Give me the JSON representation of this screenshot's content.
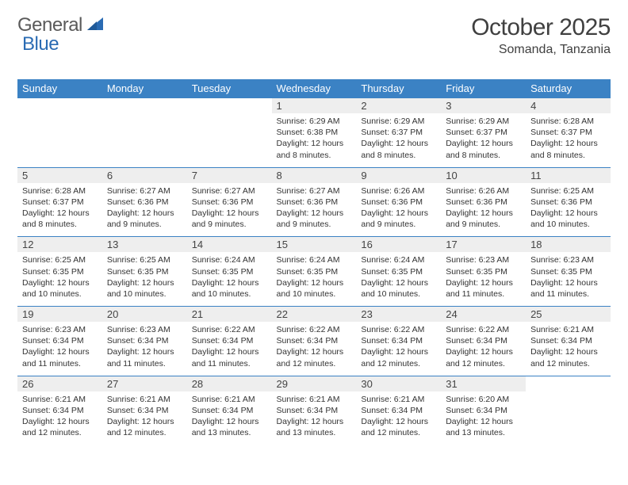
{
  "brand": {
    "word1": "General",
    "word2": "Blue",
    "logo_color": "#2a6bb3",
    "text_color": "#5a5a5a"
  },
  "header": {
    "title": "October 2025",
    "location": "Somanda, Tanzania"
  },
  "dayHeaders": [
    "Sunday",
    "Monday",
    "Tuesday",
    "Wednesday",
    "Thursday",
    "Friday",
    "Saturday"
  ],
  "colors": {
    "header_bg": "#3b82c4",
    "header_fg": "#ffffff",
    "row_divider": "#3b82c4",
    "daynum_bg": "#eeeeee",
    "body_text": "#333333"
  },
  "weeks": [
    [
      {
        "num": "",
        "lines": []
      },
      {
        "num": "",
        "lines": []
      },
      {
        "num": "",
        "lines": []
      },
      {
        "num": "1",
        "lines": [
          "Sunrise: 6:29 AM",
          "Sunset: 6:38 PM",
          "Daylight: 12 hours",
          "and 8 minutes."
        ]
      },
      {
        "num": "2",
        "lines": [
          "Sunrise: 6:29 AM",
          "Sunset: 6:37 PM",
          "Daylight: 12 hours",
          "and 8 minutes."
        ]
      },
      {
        "num": "3",
        "lines": [
          "Sunrise: 6:29 AM",
          "Sunset: 6:37 PM",
          "Daylight: 12 hours",
          "and 8 minutes."
        ]
      },
      {
        "num": "4",
        "lines": [
          "Sunrise: 6:28 AM",
          "Sunset: 6:37 PM",
          "Daylight: 12 hours",
          "and 8 minutes."
        ]
      }
    ],
    [
      {
        "num": "5",
        "lines": [
          "Sunrise: 6:28 AM",
          "Sunset: 6:37 PM",
          "Daylight: 12 hours",
          "and 8 minutes."
        ]
      },
      {
        "num": "6",
        "lines": [
          "Sunrise: 6:27 AM",
          "Sunset: 6:36 PM",
          "Daylight: 12 hours",
          "and 9 minutes."
        ]
      },
      {
        "num": "7",
        "lines": [
          "Sunrise: 6:27 AM",
          "Sunset: 6:36 PM",
          "Daylight: 12 hours",
          "and 9 minutes."
        ]
      },
      {
        "num": "8",
        "lines": [
          "Sunrise: 6:27 AM",
          "Sunset: 6:36 PM",
          "Daylight: 12 hours",
          "and 9 minutes."
        ]
      },
      {
        "num": "9",
        "lines": [
          "Sunrise: 6:26 AM",
          "Sunset: 6:36 PM",
          "Daylight: 12 hours",
          "and 9 minutes."
        ]
      },
      {
        "num": "10",
        "lines": [
          "Sunrise: 6:26 AM",
          "Sunset: 6:36 PM",
          "Daylight: 12 hours",
          "and 9 minutes."
        ]
      },
      {
        "num": "11",
        "lines": [
          "Sunrise: 6:25 AM",
          "Sunset: 6:36 PM",
          "Daylight: 12 hours",
          "and 10 minutes."
        ]
      }
    ],
    [
      {
        "num": "12",
        "lines": [
          "Sunrise: 6:25 AM",
          "Sunset: 6:35 PM",
          "Daylight: 12 hours",
          "and 10 minutes."
        ]
      },
      {
        "num": "13",
        "lines": [
          "Sunrise: 6:25 AM",
          "Sunset: 6:35 PM",
          "Daylight: 12 hours",
          "and 10 minutes."
        ]
      },
      {
        "num": "14",
        "lines": [
          "Sunrise: 6:24 AM",
          "Sunset: 6:35 PM",
          "Daylight: 12 hours",
          "and 10 minutes."
        ]
      },
      {
        "num": "15",
        "lines": [
          "Sunrise: 6:24 AM",
          "Sunset: 6:35 PM",
          "Daylight: 12 hours",
          "and 10 minutes."
        ]
      },
      {
        "num": "16",
        "lines": [
          "Sunrise: 6:24 AM",
          "Sunset: 6:35 PM",
          "Daylight: 12 hours",
          "and 10 minutes."
        ]
      },
      {
        "num": "17",
        "lines": [
          "Sunrise: 6:23 AM",
          "Sunset: 6:35 PM",
          "Daylight: 12 hours",
          "and 11 minutes."
        ]
      },
      {
        "num": "18",
        "lines": [
          "Sunrise: 6:23 AM",
          "Sunset: 6:35 PM",
          "Daylight: 12 hours",
          "and 11 minutes."
        ]
      }
    ],
    [
      {
        "num": "19",
        "lines": [
          "Sunrise: 6:23 AM",
          "Sunset: 6:34 PM",
          "Daylight: 12 hours",
          "and 11 minutes."
        ]
      },
      {
        "num": "20",
        "lines": [
          "Sunrise: 6:23 AM",
          "Sunset: 6:34 PM",
          "Daylight: 12 hours",
          "and 11 minutes."
        ]
      },
      {
        "num": "21",
        "lines": [
          "Sunrise: 6:22 AM",
          "Sunset: 6:34 PM",
          "Daylight: 12 hours",
          "and 11 minutes."
        ]
      },
      {
        "num": "22",
        "lines": [
          "Sunrise: 6:22 AM",
          "Sunset: 6:34 PM",
          "Daylight: 12 hours",
          "and 12 minutes."
        ]
      },
      {
        "num": "23",
        "lines": [
          "Sunrise: 6:22 AM",
          "Sunset: 6:34 PM",
          "Daylight: 12 hours",
          "and 12 minutes."
        ]
      },
      {
        "num": "24",
        "lines": [
          "Sunrise: 6:22 AM",
          "Sunset: 6:34 PM",
          "Daylight: 12 hours",
          "and 12 minutes."
        ]
      },
      {
        "num": "25",
        "lines": [
          "Sunrise: 6:21 AM",
          "Sunset: 6:34 PM",
          "Daylight: 12 hours",
          "and 12 minutes."
        ]
      }
    ],
    [
      {
        "num": "26",
        "lines": [
          "Sunrise: 6:21 AM",
          "Sunset: 6:34 PM",
          "Daylight: 12 hours",
          "and 12 minutes."
        ]
      },
      {
        "num": "27",
        "lines": [
          "Sunrise: 6:21 AM",
          "Sunset: 6:34 PM",
          "Daylight: 12 hours",
          "and 12 minutes."
        ]
      },
      {
        "num": "28",
        "lines": [
          "Sunrise: 6:21 AM",
          "Sunset: 6:34 PM",
          "Daylight: 12 hours",
          "and 13 minutes."
        ]
      },
      {
        "num": "29",
        "lines": [
          "Sunrise: 6:21 AM",
          "Sunset: 6:34 PM",
          "Daylight: 12 hours",
          "and 13 minutes."
        ]
      },
      {
        "num": "30",
        "lines": [
          "Sunrise: 6:21 AM",
          "Sunset: 6:34 PM",
          "Daylight: 12 hours",
          "and 12 minutes."
        ]
      },
      {
        "num": "31",
        "lines": [
          "Sunrise: 6:20 AM",
          "Sunset: 6:34 PM",
          "Daylight: 12 hours",
          "and 13 minutes."
        ]
      },
      {
        "num": "",
        "lines": []
      }
    ]
  ]
}
